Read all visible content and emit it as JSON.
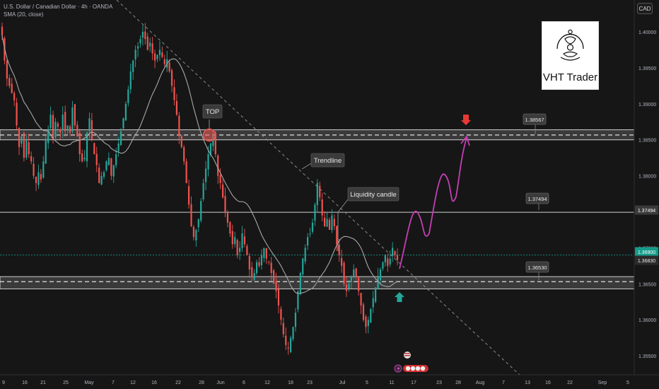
{
  "header": {
    "symbol_line": "U.S. Dollar / Canadian Dollar · 4h · OANDA",
    "indicator_line": "SMA (20, close)"
  },
  "currency": "CAD",
  "logo": {
    "text": "VHT Trader"
  },
  "colors": {
    "background": "#161616",
    "bull": "#26a69a",
    "bear": "#ef5350",
    "sma": "#b0b0b0",
    "zone_fill": "#3a3a3a",
    "projection": "#c53fb4",
    "arrow_down": "#e53935",
    "arrow_up": "#26a69a",
    "badge": "#3b3b3b",
    "last_price": "#159c8a"
  },
  "chart_data": {
    "type": "candlestick",
    "x_axis": {
      "tick_labels": [
        "9",
        "16",
        "21",
        "25",
        "May",
        "7",
        "12",
        "16",
        "22",
        "28",
        "Jun",
        "6",
        "12",
        "18",
        "23",
        "Jul",
        "5",
        "11",
        "17",
        "23",
        "28",
        "Aug",
        "7",
        "13",
        "16",
        "22",
        "Sep",
        "5"
      ],
      "note": "dates Apr–Sep"
    },
    "y_axis": {
      "tick_labels": [
        "1.40000",
        "1.39500",
        "1.39000",
        "1.38500",
        "1.38000",
        "1.37500",
        "1.37000",
        "1.36500",
        "1.36000",
        "1.35500"
      ],
      "ylim": [
        1.354,
        1.405
      ]
    },
    "price_levels": [
      {
        "name": "resistance-zone",
        "label": "1.38567",
        "low": 1.385,
        "high": 1.3864,
        "center": 1.38567
      },
      {
        "name": "middle-level",
        "label": "1.37494",
        "value": 1.37494
      },
      {
        "name": "support-zone",
        "label": "1.36530",
        "low": 1.3643,
        "high": 1.366,
        "center": 1.3653
      }
    ],
    "price_tags": [
      {
        "label": "1.37494",
        "value": 1.37494
      },
      {
        "label": "1.36900",
        "value": 1.369
      },
      {
        "label": "1.36830",
        "value": 1.3683
      }
    ],
    "annotations": [
      {
        "name": "top",
        "text": "TOP"
      },
      {
        "name": "trendline",
        "text": "Trendline"
      },
      {
        "name": "liquidity-candle",
        "text": "Liquidity candle"
      }
    ],
    "close_series": [
      1.3995,
      1.396,
      1.3935,
      1.3925,
      1.3915,
      1.3905,
      1.387,
      1.384,
      1.3855,
      1.3825,
      1.385,
      1.383,
      1.382,
      1.38,
      1.379,
      1.3805,
      1.3795,
      1.382,
      1.385,
      1.3865,
      1.3885,
      1.385,
      1.3875,
      1.3868,
      1.386,
      1.3885,
      1.3862,
      1.387,
      1.386,
      1.3895,
      1.387,
      1.3855,
      1.383,
      1.382,
      1.3825,
      1.386,
      1.388,
      1.385,
      1.383,
      1.3815,
      1.379,
      1.38,
      1.3805,
      1.382,
      1.3825,
      1.38,
      1.3815,
      1.383,
      1.3845,
      1.3862,
      1.388,
      1.39,
      1.392,
      1.3945,
      1.396,
      1.3975,
      1.398,
      1.399,
      1.4,
      1.399,
      1.3975,
      1.3985,
      1.397,
      1.396,
      1.3968,
      1.3975,
      1.3965,
      1.3955,
      1.3962,
      1.3945,
      1.3925,
      1.3905,
      1.3885,
      1.3855,
      1.384,
      1.382,
      1.379,
      1.376,
      1.373,
      1.3715,
      1.3725,
      1.374,
      1.3765,
      1.379,
      1.381,
      1.383,
      1.3845,
      1.3855,
      1.383,
      1.38,
      1.379,
      1.377,
      1.375,
      1.3735,
      1.372,
      1.3705,
      1.3715,
      1.369,
      1.37,
      1.372,
      1.3705,
      1.369,
      1.367,
      1.366,
      1.3665,
      1.368,
      1.3675,
      1.369,
      1.37,
      1.3685,
      1.368,
      1.3665,
      1.365,
      1.364,
      1.362,
      1.36,
      1.358,
      1.3565,
      1.356,
      1.3575,
      1.359,
      1.361,
      1.364,
      1.3665,
      1.3685,
      1.37,
      1.3715,
      1.372,
      1.3735,
      1.376,
      1.379,
      1.377,
      1.3745,
      1.373,
      1.374,
      1.3725,
      1.3745,
      1.373,
      1.3705,
      1.369,
      1.3675,
      1.365,
      1.364,
      1.365,
      1.366,
      1.367,
      1.366,
      1.364,
      1.362,
      1.36,
      1.359,
      1.36,
      1.3615,
      1.363,
      1.3645,
      1.366,
      1.367,
      1.368,
      1.369,
      1.3675,
      1.3685,
      1.37,
      1.369,
      1.3683
    ]
  }
}
